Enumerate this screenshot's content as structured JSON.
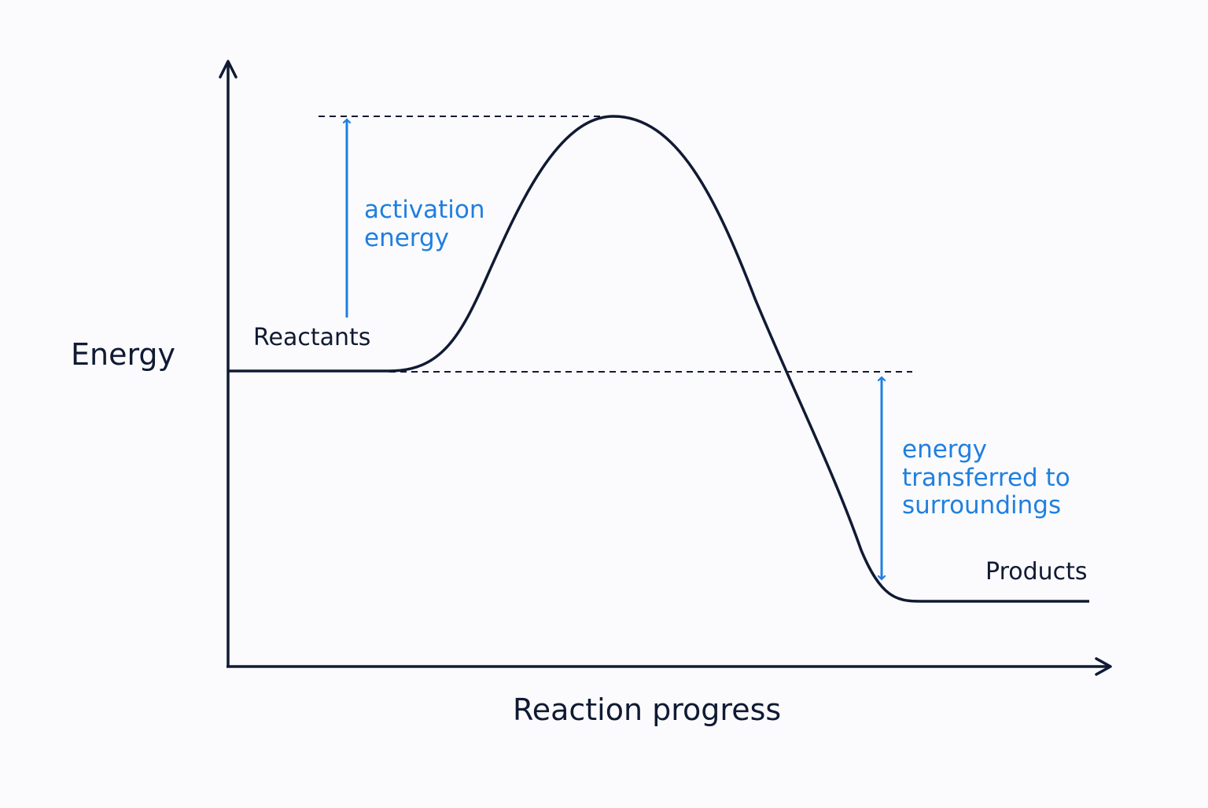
{
  "axes": {
    "y_label": "Energy",
    "x_label": "Reaction progress"
  },
  "states": {
    "reactants": "Reactants",
    "products": "Products"
  },
  "annotations": {
    "activation_energy": [
      "activation",
      "energy"
    ],
    "energy_released": [
      "energy",
      "transferred to",
      "surroundings"
    ]
  },
  "colors": {
    "curve": "#101a33",
    "annotation": "#1f7fe0",
    "background": "#fbfbfd"
  }
}
